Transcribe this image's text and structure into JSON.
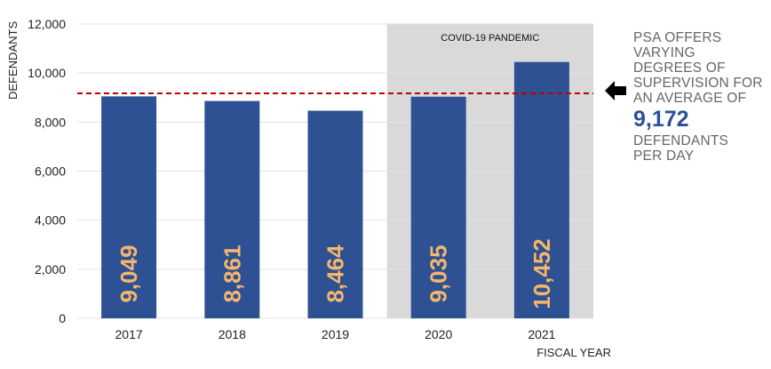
{
  "chart_data": {
    "type": "bar",
    "categories": [
      "2017",
      "2018",
      "2019",
      "2020",
      "2021"
    ],
    "values": [
      9049,
      8861,
      8464,
      9035,
      10452
    ],
    "value_labels": [
      "9,049",
      "8,861",
      "8,464",
      "9,035",
      "10,452"
    ],
    "xlabel": "FISCAL YEAR",
    "ylabel": "DEFENDANTS",
    "ylim": [
      0,
      12000
    ],
    "yticks": [
      0,
      2000,
      4000,
      6000,
      8000,
      10000,
      12000
    ],
    "ytick_labels": [
      "0",
      "2,000",
      "4,000",
      "6,000",
      "8,000",
      "10,000",
      "12,000"
    ],
    "grid": true,
    "reference_line": {
      "value": 9172,
      "style": "dashed",
      "color": "#c00000"
    },
    "shaded_region": {
      "from": "2020",
      "to": "2021",
      "label": "COVID-19 PANDEMIC",
      "color": "#d9d9d9"
    },
    "bar_color": "#2d5193",
    "bar_label_color": "#f6b66b"
  },
  "callout": {
    "lines_before": [
      "PSA OFFERS",
      "VARYING",
      "DEGREES OF",
      "SUPERVISION FOR",
      "AN AVERAGE OF"
    ],
    "highlight": "9,172",
    "lines_after": [
      "DEFENDANTS",
      "PER DAY"
    ],
    "highlight_color": "#2d4f95",
    "arrow_icon": "left-arrow-icon"
  }
}
